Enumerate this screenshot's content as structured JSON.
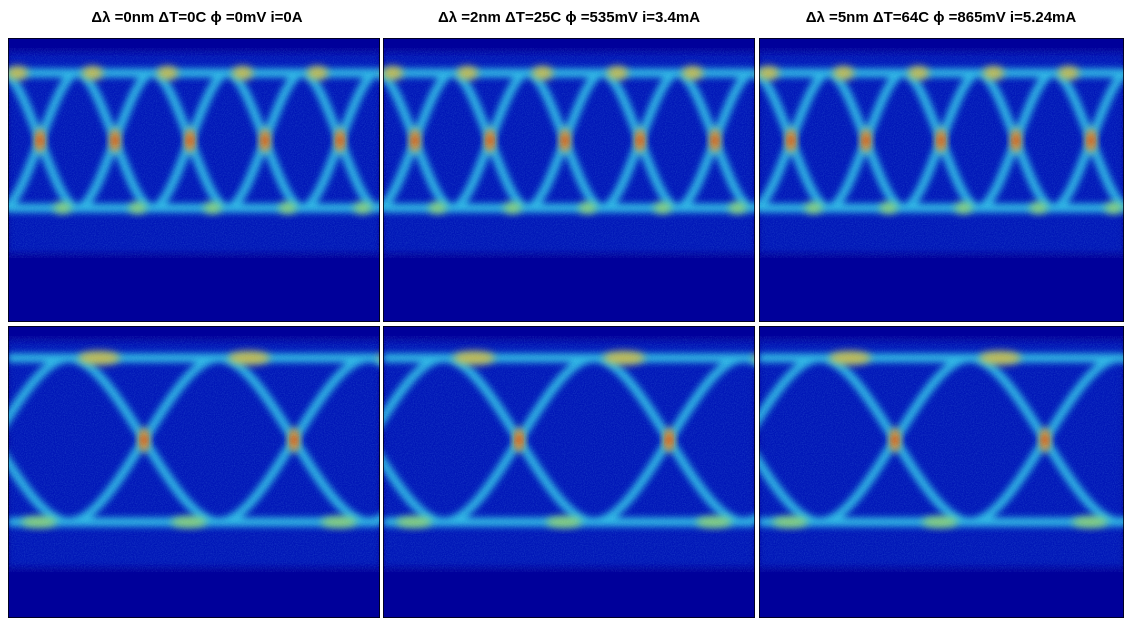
{
  "titles": [
    "Δλ =0nm ΔT=0C ϕ =0mV i=0A",
    "Δλ =2nm ΔT=25C ϕ =535mV i=3.4mA",
    "Δλ =5nm ΔT=64C ϕ =865mV i=5.24mA"
  ]
}
